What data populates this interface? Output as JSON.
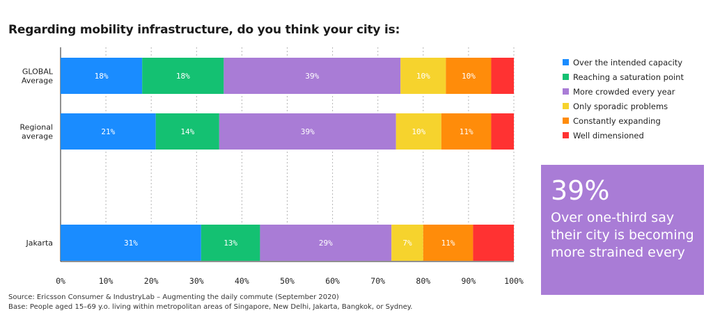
{
  "title": "Regarding mobility infrastructure, do you think your city is:",
  "colors": {
    "Over the intended capacity": "#1a8cff",
    "Reaching a saturation point": "#14c172",
    "More crowded every year": "#a97cd6",
    "Only sporadic problems": "#f6d32d",
    "Constantly expanding": "#ff8c0a",
    "Well dimensioned": "#ff3232"
  },
  "legend": [
    "Over the intended capacity",
    "Reaching a saturation point",
    "More crowded every year",
    "Only sporadic problems",
    "Constantly expanding",
    "Well dimensioned"
  ],
  "callout": {
    "big": "39%",
    "text": "Over one-third say their city is becoming more strained every"
  },
  "footnotes": {
    "source": "Source: Ericsson Consumer & IndustryLab – Augmenting the daily commute (September 2020)",
    "base": "Base: People aged 15–69 y.o. living within metropolitan areas of Singapore, New Delhi, Jakarta, Bangkok, or Sydney."
  },
  "chart_data": {
    "type": "bar",
    "orientation": "horizontal",
    "stacked": true,
    "xlim": [
      0,
      100
    ],
    "x_ticks": [
      "0%",
      "10%",
      "20%",
      "30%",
      "40%",
      "50%",
      "60%",
      "70%",
      "80%",
      "90%",
      "100%"
    ],
    "grid": true,
    "legend_position": "right",
    "categories": [
      "GLOBAL Average",
      "Regional average",
      "Jakarta"
    ],
    "category_labels": [
      [
        "GLOBAL",
        "Average"
      ],
      [
        "Regional",
        "average"
      ],
      [
        "Jakarta"
      ]
    ],
    "series": [
      {
        "name": "Over the intended capacity",
        "values": [
          18,
          21,
          31
        ],
        "labels": [
          "18%",
          "21%",
          "31%"
        ]
      },
      {
        "name": "Reaching a saturation point",
        "values": [
          18,
          14,
          13
        ],
        "labels": [
          "18%",
          "14%",
          "13%"
        ]
      },
      {
        "name": "More crowded every year",
        "values": [
          39,
          39,
          29
        ],
        "labels": [
          "39%",
          "39%",
          "29%"
        ]
      },
      {
        "name": "Only sporadic problems",
        "values": [
          10,
          10,
          7
        ],
        "labels": [
          "10%",
          "10%",
          "7%"
        ]
      },
      {
        "name": "Constantly expanding",
        "values": [
          10,
          11,
          11
        ],
        "labels": [
          "10%",
          "11%",
          "11%"
        ]
      },
      {
        "name": "Well dimensioned",
        "values": [
          5,
          5,
          9
        ],
        "labels": [
          "",
          "",
          ""
        ]
      }
    ]
  }
}
